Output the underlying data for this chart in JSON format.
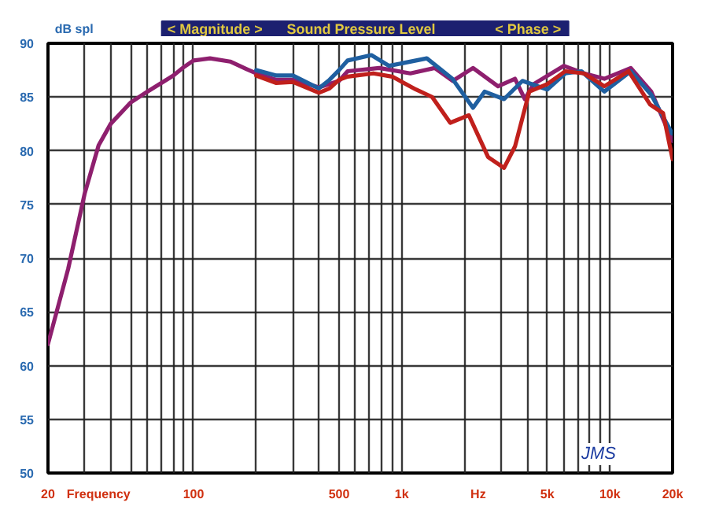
{
  "chart_data": {
    "type": "line",
    "title": "Sound Pressure Level",
    "ylabel": "dB spl",
    "annotations": [
      "< Magnitude >",
      "< Phase >",
      "Frequency",
      "Hz",
      "JMS"
    ],
    "log": "x",
    "grid": true,
    "marker": "none",
    "line_style": "solid",
    "xlim": [
      20,
      20000
    ],
    "ylim": [
      50,
      90
    ],
    "xticks": [
      20,
      {
        "value": 30,
        "label": null
      },
      {
        "value": 40,
        "label": null
      },
      {
        "value": 50,
        "label": null
      },
      {
        "value": 60,
        "label": null
      },
      {
        "value": 70,
        "label": null
      },
      {
        "value": 80,
        "label": null
      },
      {
        "value": 90,
        "label": null
      },
      100,
      {
        "value": 200,
        "label": null
      },
      {
        "value": 300,
        "label": null
      },
      {
        "value": 400,
        "label": null
      },
      500,
      {
        "value": 600,
        "label": null
      },
      {
        "value": 700,
        "label": null
      },
      {
        "value": 800,
        "label": null
      },
      {
        "value": 900,
        "label": null
      },
      {
        "value": 1000,
        "label": "1k"
      },
      {
        "value": 2000,
        "label": null
      },
      {
        "value": 3000,
        "label": null
      },
      {
        "value": 4000,
        "label": null
      },
      {
        "value": 5000,
        "label": "5k"
      },
      {
        "value": 6000,
        "label": null
      },
      {
        "value": 7000,
        "label": null
      },
      {
        "value": 8000,
        "label": null
      },
      {
        "value": 9000,
        "label": null
      },
      {
        "value": 10000,
        "label": "10k"
      },
      {
        "value": 20000,
        "label": "20k"
      }
    ],
    "yticks": [
      50,
      55,
      60,
      65,
      70,
      75,
      80,
      85,
      90
    ],
    "series": [
      {
        "color": "#8e1f6e",
        "x": [
          20,
          25,
          30,
          35,
          40,
          50,
          60,
          70,
          80,
          90,
          100,
          120,
          150,
          180,
          200,
          250,
          300,
          400,
          500,
          550,
          780,
          1100,
          1440,
          1760,
          2200,
          2900,
          3500,
          3900,
          4300,
          6000,
          7500,
          9400,
          12600,
          15800,
          20000
        ],
        "values": [
          62,
          69,
          76,
          80.5,
          82.5,
          84.5,
          85.5,
          86.3,
          87,
          87.8,
          88.4,
          88.6,
          88.3,
          87.6,
          87.2,
          86.6,
          86.6,
          85.9,
          86.5,
          87.4,
          87.7,
          87.2,
          87.7,
          86.5,
          87.7,
          86,
          86.7,
          84.8,
          86.2,
          87.9,
          87.2,
          86.7,
          87.7,
          85.5,
          80.9
        ]
      },
      {
        "color": "#1f5fa0",
        "x": [
          200,
          250,
          300,
          400,
          450,
          500,
          550,
          715,
          870,
          1320,
          1750,
          2200,
          2500,
          3100,
          3800,
          5000,
          6100,
          7300,
          9400,
          12600,
          15800,
          19900
        ],
        "values": [
          87.5,
          87,
          87,
          85.8,
          86.6,
          87.5,
          88.4,
          88.9,
          87.9,
          88.6,
          86.7,
          84,
          85.5,
          84.8,
          86.5,
          85.7,
          87.2,
          87.4,
          85.5,
          87.4,
          85.2,
          81.6
        ]
      },
      {
        "color": "#c0201c",
        "x": [
          200,
          250,
          300,
          400,
          450,
          500,
          550,
          730,
          900,
          1170,
          1400,
          1710,
          2100,
          2600,
          3100,
          3500,
          4100,
          5000,
          6100,
          7500,
          9400,
          12300,
          15600,
          18000,
          20000
        ],
        "values": [
          87,
          86.3,
          86.4,
          85.4,
          85.8,
          86.6,
          86.9,
          87.2,
          86.9,
          85.7,
          85,
          82.6,
          83.3,
          79.4,
          78.4,
          80.4,
          85.5,
          86.2,
          87.4,
          87.2,
          86,
          87.4,
          84.3,
          83.5,
          79.2
        ]
      }
    ]
  }
}
